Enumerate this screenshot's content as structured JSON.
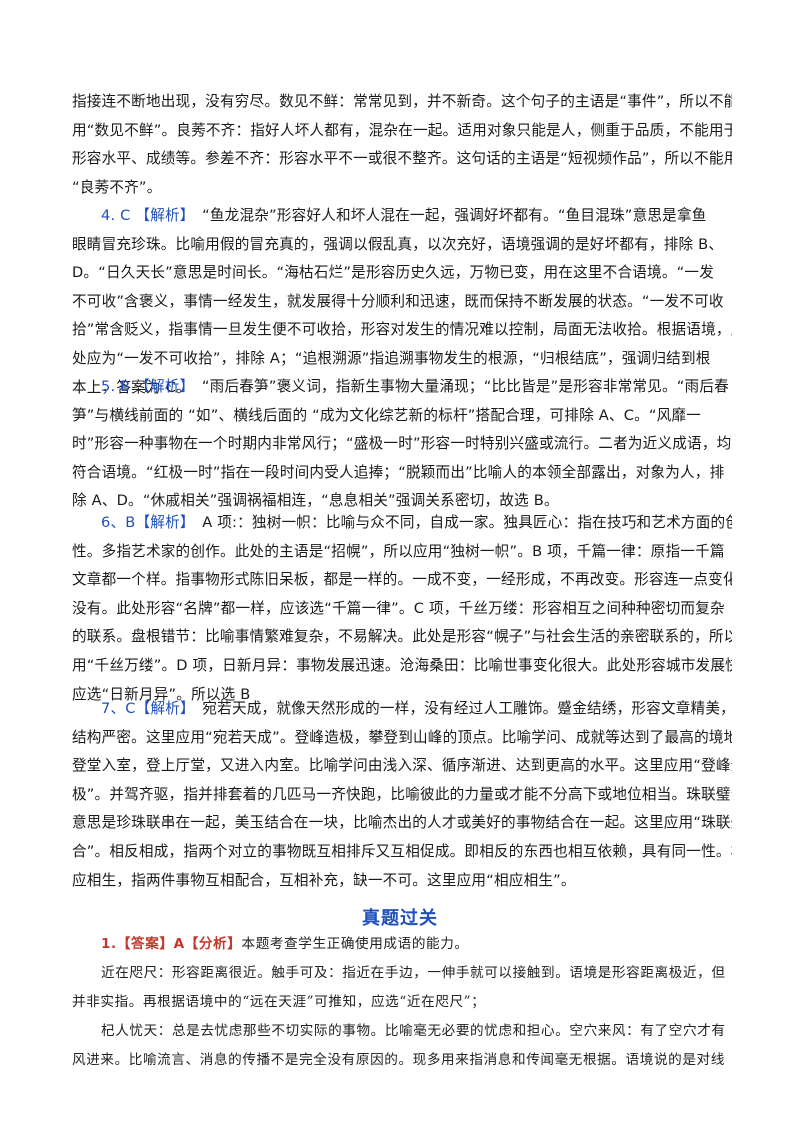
{
  "intro": [
    "指接连不断地出现，没有穷尽。数见不鲜：常常见到，并不新奇。这个句子的主语是“事件”，所以不能",
    "用“数见不鲜”。良莠不齐：指好人坏人都有，混杂在一起。适用对象只能是人，侧重于品质，不能用于",
    "形容水平、成绩等。参差不齐：形容水平不一或很不整齐。这句话的主语是“短视频作品”，所以不能用",
    "“良莠不齐”。"
  ],
  "items": [
    {
      "num": "4. C",
      "tag": "【解析】",
      "first": "“鱼龙混杂”形容好人和坏人混在一起，强调好坏都有。“鱼目混珠”意思是拿鱼",
      "rest": [
        "眼睛冒充珍珠。比喻用假的冒充真的，强调以假乱真，以次充好，语境强调的是好坏都有，排除 B、",
        "D。“日久天长”意思是时间长。“海枯石烂”是形容历史久远，万物已变，用在这里不合语境。“一发",
        "不可收”含褒义，事情一经发生，就发展得十分顺利和迅速，既而保持不断发展的状态。“一发不可收",
        "拾”常含贬义，指事情一旦发生便不可收拾，形容对发生的情况难以控制，局面无法收拾。根据语境，此",
        "处应为“一发不可收拾”，排除 A；“追根溯源”指追溯事物发生的根源，“归根结底”，强调归结到根",
        "本上，答案为 C。"
      ]
    },
    {
      "num": "5. B",
      "tag": "【解析】",
      "first": "“雨后春笋”褒义词，指新生事物大量涌现；“比比皆是”是形容非常常见。“雨后春",
      "rest": [
        "笋”与横线前面的 “如”、横线后面的 “成为文化综艺新的标杆”搭配合理，可排除 A、C。“风靡一",
        "时”形容一种事物在一个时期内非常风行；“盛极一时”形容一时特别兴盛或流行。二者为近义成语，均",
        "符合语境。“红极一时”指在一段时间内受人追捧；“脱颖而出”比喻人的本领全部露出，对象为人，排",
        "除 A、D。“休戚相关”强调祸福相连，“息息相关”强调关系密切，故选 B。"
      ]
    },
    {
      "num": "6、B",
      "tag": "【解析】",
      "first": "A 项:：独树一帜：比喻与众不同，自成一家。独具匠心：指在技巧和艺术方面的创造",
      "rest": [
        "性。多指艺术家的创作。此处的主语是“招幌”，所以应用“独树一帜”。B 项，千篇一律：原指一千篇",
        "文章都一个样。指事物形式陈旧呆板，都是一样的。一成不变，一经形成，不再改变。形容连一点变化都",
        "没有。此处形容“名牌”都一样，应该选“千篇一律”。C 项，千丝万缕：形容相互之间种种密切而复杂",
        "的联系。盘根错节：比喻事情繁难复杂，不易解决。此处是形容“幌子”与社会生活的亲密联系的，所以",
        "用“千丝万缕”。D 项，日新月异：事物发展迅速。沧海桑田：比喻世事变化很大。此处形容城市发展快，",
        "应选“日新月异”。所以选 B"
      ]
    },
    {
      "num": "7、C",
      "tag": "【解析】",
      "first": "宛若天成，就像天然形成的一样，没有经过人工雕饰。蹙金结绣，形容文章精美，",
      "rest": [
        "结构严密。这里应用“宛若天成”。登峰造极，攀登到山峰的顶点。比喻学问、成就等达到了最高的境地。",
        "登堂入室，登上厅堂，又进入内室。比喻学问由浅入深、循序渐进、达到更高的水平。这里应用“登峰造",
        "极”。并驾齐驱，指并排套着的几匹马一齐快跑，比喻彼此的力量或才能不分高下或地位相当。珠联璧合，",
        "意思是珍珠联串在一起，美玉结合在一块，比喻杰出的人才或美好的事物结合在一起。这里应用“珠联璧",
        "合”。相反相成，指两个对立的事物既互相排斥又互相促成。即相反的东西也相互依赖，具有同一性。相",
        "应相生，指两件事物互相配合，互相补充，缺一不可。这里应用“相应相生”。"
      ]
    }
  ],
  "section_title": "真题过关",
  "q1": {
    "label": "1.【答案】A【分析】",
    "first": "本题考查学生正确使用成语的能力。",
    "lines": [
      "近在咫尺：形容距离很近。触手可及：指近在手边，一伸手就可以接触到。语境是形容距离极近，但",
      "并非实指。再根据语境中的“远在天涯”可推知，应选“近在咫尺”；",
      "杞人忧天：总是去忧虑那些不切实际的事物。比喻毫无必要的忧虑和担心。空穴来风：有了空穴才有",
      "风进来。比喻流言、消息的传播不是完全没有原因的。现多用来指消息和传闻毫无根据。语境说的是对线"
    ]
  }
}
